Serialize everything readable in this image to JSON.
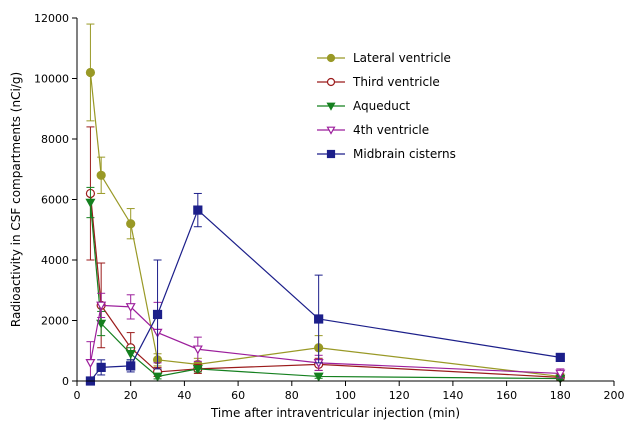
{
  "chart_data": {
    "type": "line",
    "xlabel": "Time after intraventricular injection (min)",
    "ylabel": "Radioactivity in CSF compartments (nCi/g)",
    "xlim": [
      0,
      200
    ],
    "ylim": [
      0,
      12000
    ],
    "xticks": [
      0,
      20,
      40,
      60,
      80,
      100,
      120,
      140,
      160,
      180,
      200
    ],
    "yticks": [
      0,
      2000,
      4000,
      6000,
      8000,
      10000,
      12000
    ],
    "xtick_labels": [
      "0",
      "20",
      "40",
      "60",
      "80",
      "100",
      "120",
      "140",
      "160",
      "180",
      "200"
    ],
    "ytick_labels": [
      "0",
      "2000",
      "4000",
      "6000",
      "8000",
      "10000",
      "12000"
    ],
    "grid": false,
    "legend_position": "top-right",
    "series": [
      {
        "name": "Lateral ventricle",
        "color": "#999926",
        "marker": "filled-circle",
        "x": [
          5,
          9,
          20,
          30,
          45,
          90,
          180
        ],
        "y": [
          10200,
          6800,
          5200,
          700,
          550,
          1100,
          150
        ],
        "err": [
          1600,
          600,
          500,
          200,
          200,
          400,
          100
        ]
      },
      {
        "name": "Third ventricle",
        "color": "#9b1b1b",
        "marker": "open-circle",
        "x": [
          5,
          9,
          20,
          30,
          45,
          90,
          180
        ],
        "y": [
          6200,
          2500,
          1100,
          300,
          400,
          550,
          120
        ],
        "err": [
          2200,
          1400,
          500,
          150,
          150,
          200,
          80
        ]
      },
      {
        "name": "Aqueduct",
        "color": "#15801f",
        "marker": "filled-triangle-down",
        "x": [
          5,
          9,
          20,
          30,
          45,
          90,
          180
        ],
        "y": [
          5900,
          1900,
          900,
          150,
          400,
          150,
          80
        ],
        "err": [
          500,
          400,
          200,
          80,
          100,
          60,
          40
        ]
      },
      {
        "name": "4th ventricle",
        "color": "#9c1f9c",
        "marker": "open-triangle-down",
        "x": [
          5,
          9,
          20,
          30,
          45,
          90,
          180
        ],
        "y": [
          600,
          2500,
          2450,
          1600,
          1050,
          600,
          250
        ],
        "err": [
          700,
          400,
          400,
          1000,
          400,
          250,
          150
        ]
      },
      {
        "name": "Midbrain cisterns",
        "color": "#1c1f8a",
        "marker": "filled-square",
        "x": [
          5,
          9,
          20,
          30,
          45,
          90,
          180
        ],
        "y": [
          0,
          450,
          500,
          2200,
          5650,
          2050,
          780
        ],
        "err": [
          50,
          250,
          200,
          1800,
          550,
          1450,
          80
        ]
      }
    ]
  }
}
